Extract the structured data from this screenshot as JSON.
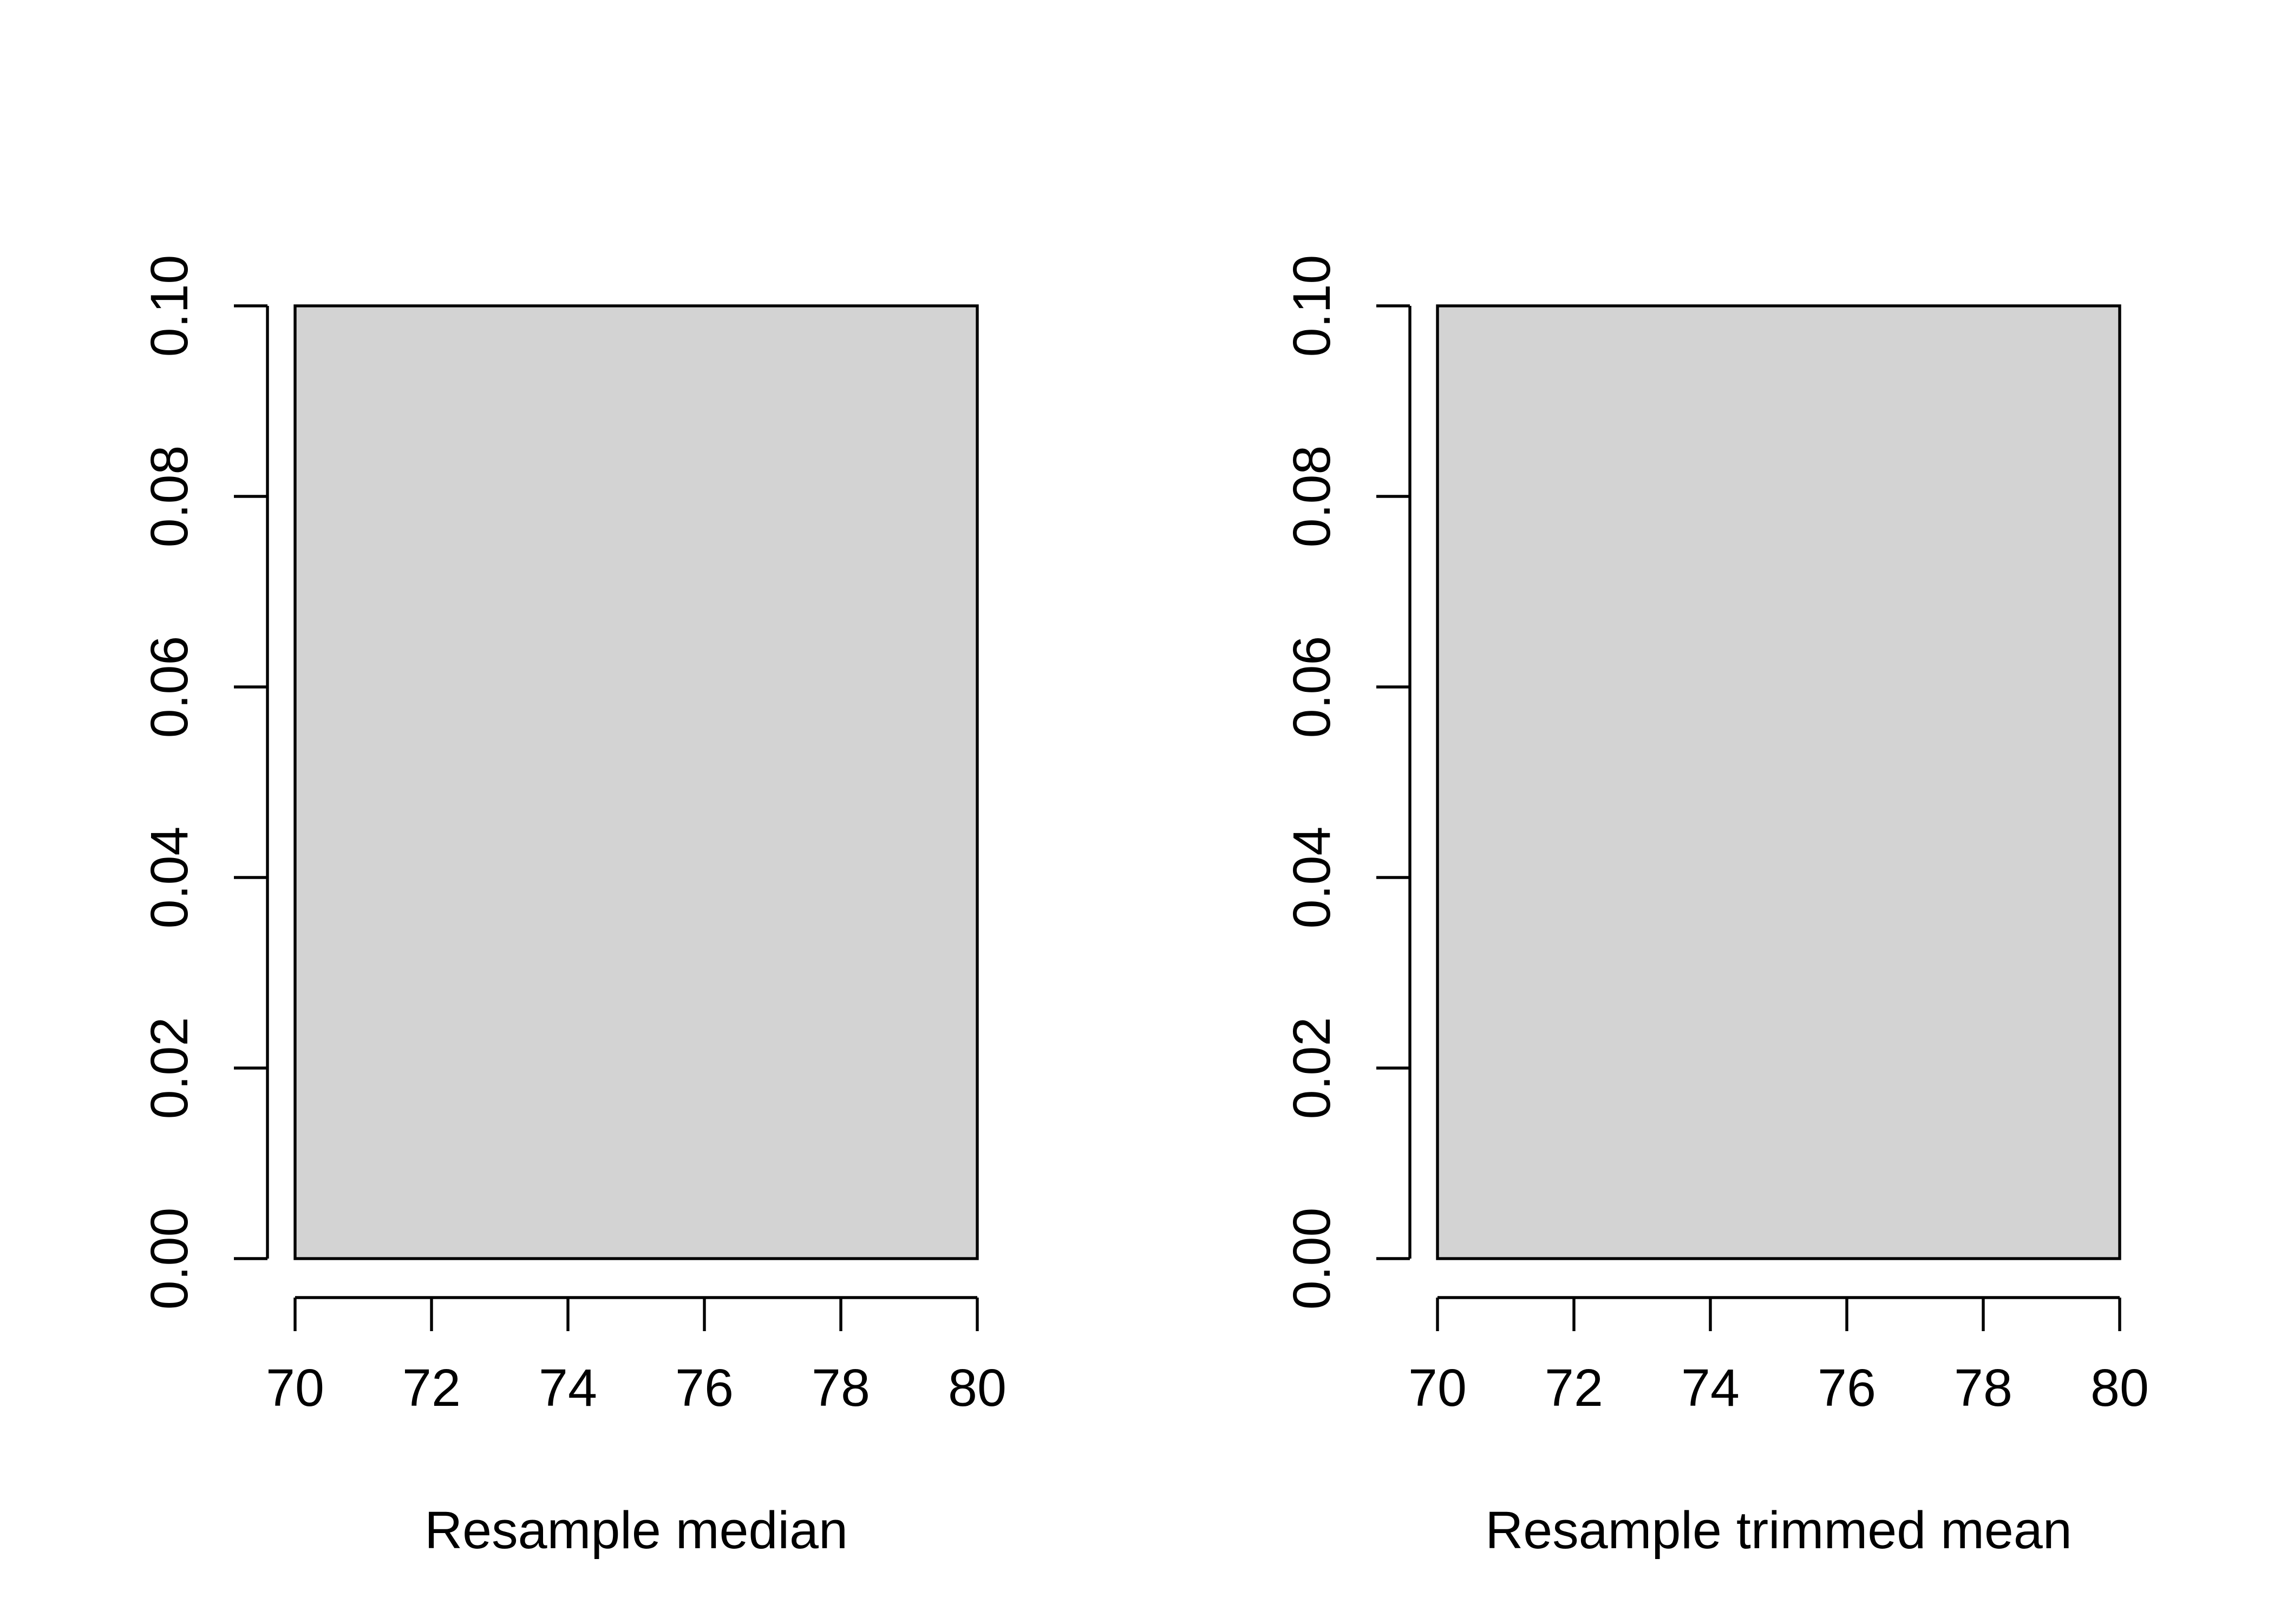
{
  "chart_data": [
    {
      "type": "bar",
      "title": "",
      "xlabel": "Resample median",
      "ylabel": "",
      "xlim": [
        70,
        80
      ],
      "ylim": [
        0,
        0.1
      ],
      "x_ticks": [
        70,
        72,
        74,
        76,
        78,
        80
      ],
      "y_ticks": [
        0.0,
        0.02,
        0.04,
        0.06,
        0.08,
        0.1
      ],
      "x_tick_labels": [
        "70",
        "72",
        "74",
        "76",
        "78",
        "80"
      ],
      "y_tick_labels": [
        "0.00",
        "0.02",
        "0.04",
        "0.06",
        "0.08",
        "0.10"
      ],
      "bins": [
        {
          "x0": 70,
          "x1": 80,
          "value": 0.1
        }
      ],
      "bar_fill": "#d3d3d3",
      "grid": false,
      "legend": "none"
    },
    {
      "type": "bar",
      "title": "",
      "xlabel": "Resample trimmed mean",
      "ylabel": "",
      "xlim": [
        70,
        80
      ],
      "ylim": [
        0,
        0.1
      ],
      "x_ticks": [
        70,
        72,
        74,
        76,
        78,
        80
      ],
      "y_ticks": [
        0.0,
        0.02,
        0.04,
        0.06,
        0.08,
        0.1
      ],
      "x_tick_labels": [
        "70",
        "72",
        "74",
        "76",
        "78",
        "80"
      ],
      "y_tick_labels": [
        "0.00",
        "0.02",
        "0.04",
        "0.06",
        "0.08",
        "0.10"
      ],
      "bins": [
        {
          "x0": 70,
          "x1": 80,
          "value": 0.1
        }
      ],
      "bar_fill": "#d3d3d3",
      "grid": false,
      "legend": "none"
    }
  ]
}
